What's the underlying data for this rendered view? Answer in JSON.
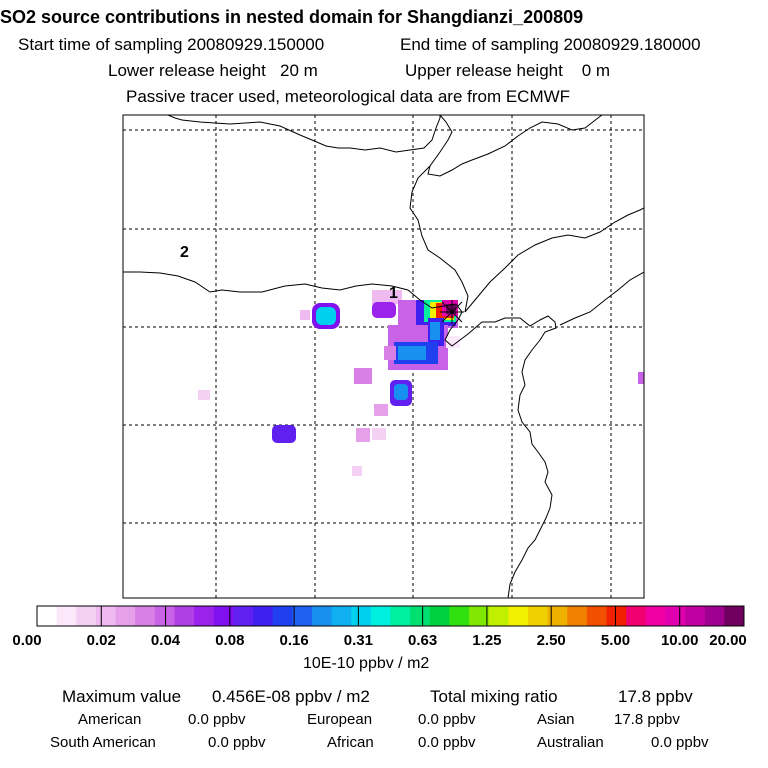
{
  "header": {
    "title": "SO2 source contributions in nested domain for Shangdianzi_200809",
    "start_label": "Start time of sampling 20080929.150000",
    "end_label": "End time of sampling 20080929.180000",
    "lower_label": "Lower release height   20 m",
    "upper_label": "Upper release height    0 m",
    "info": "Passive tracer used, meteorological data are from ECMWF"
  },
  "map": {
    "region_labels": [
      "1",
      "2"
    ]
  },
  "colorbar": {
    "ticks": [
      "0.00",
      "0.02",
      "0.04",
      "0.08",
      "0.16",
      "0.31",
      "0.63",
      "1.25",
      "2.50",
      "5.00",
      "10.00",
      "20.00"
    ],
    "unit": "10E-10 ppbv / m2",
    "colors": [
      "#ffffff",
      "#fbe8fb",
      "#f5d0f5",
      "#eebaf0",
      "#e6a0ea",
      "#d880e6",
      "#c862e6",
      "#b040e6",
      "#9a22ea",
      "#8010ee",
      "#6020f0",
      "#4020f0",
      "#2040f0",
      "#2060f0",
      "#1890f0",
      "#10b0f0",
      "#00d0f0",
      "#00f0e0",
      "#00f0a0",
      "#00e070",
      "#00d040",
      "#30e010",
      "#80e800",
      "#c0f000",
      "#f0f000",
      "#f0d000",
      "#f0b000",
      "#f08000",
      "#f05000",
      "#f02000",
      "#f00070",
      "#f000a0",
      "#e000b0",
      "#c000a0",
      "#a00090",
      "#700060"
    ]
  },
  "stats": {
    "max_label": "Maximum value",
    "max_value": "0.456E-08 ppbv / m2",
    "total_label": "Total mixing ratio",
    "total_value": "17.8 ppbv",
    "american_label": "American",
    "american_value": "0.0 ppbv",
    "european_label": "European",
    "european_value": "0.0 ppbv",
    "asian_label": "Asian",
    "asian_value": "17.8 ppbv",
    "south_american_label": "South American",
    "south_american_value": "0.0 ppbv",
    "african_label": "African",
    "african_value": "0.0 ppbv",
    "australian_label": "Australian",
    "australian_value": "0.0 ppbv"
  }
}
